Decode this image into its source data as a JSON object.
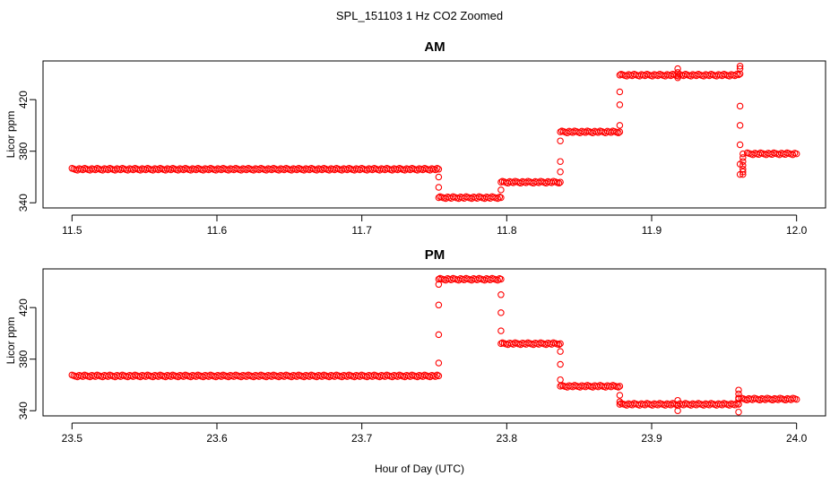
{
  "chart_data": {
    "type": "scatter",
    "title": "SPL_151103  1 Hz CO2 Zoomed",
    "xlabel": "Hour of Day (UTC)",
    "marker_color": "#ff0000",
    "panels": [
      {
        "title": "AM",
        "ylabel": "Licor ppm",
        "xlim": [
          11.48,
          12.02
        ],
        "ylim": [
          336,
          450
        ],
        "xticks": [
          "11.5",
          "11.6",
          "11.7",
          "11.8",
          "11.9",
          "12.0"
        ],
        "yticks": [
          "340",
          "380",
          "420"
        ],
        "segments": [
          {
            "x0": 11.5,
            "x1": 11.752,
            "y": 366
          },
          {
            "x0": 11.754,
            "x1": 11.795,
            "y": 344
          },
          {
            "x0": 11.797,
            "x1": 11.836,
            "y": 356
          },
          {
            "x0": 11.838,
            "x1": 11.877,
            "y": 395
          },
          {
            "x0": 11.879,
            "x1": 11.96,
            "y": 439
          },
          {
            "x0": 11.966,
            "x1": 12.0,
            "y": 378
          }
        ],
        "transitions": [
          {
            "x": 11.753,
            "y": [
              366,
              360,
              352,
              344
            ]
          },
          {
            "x": 11.796,
            "y": [
              344,
              350,
              356
            ]
          },
          {
            "x": 11.837,
            "y": [
              356,
              364,
              372,
              388,
              395
            ]
          },
          {
            "x": 11.878,
            "y": [
              395,
              400,
              416,
              426,
              439
            ]
          },
          {
            "x": 11.918,
            "y": [
              437,
              441,
              444
            ]
          },
          {
            "x": 11.961,
            "y": [
              444,
              446,
              440,
              415,
              400,
              385,
              370,
              362
            ]
          },
          {
            "x": 11.963,
            "y": [
              362,
              364,
              366,
              369,
              372,
              375,
              378
            ]
          }
        ]
      },
      {
        "title": "PM",
        "ylabel": "Licor ppm",
        "xlim": [
          23.48,
          24.02
        ],
        "ylim": [
          336,
          450
        ],
        "xticks": [
          "23.5",
          "23.6",
          "23.7",
          "23.8",
          "23.9",
          "24.0"
        ],
        "yticks": [
          "340",
          "380",
          "420"
        ],
        "segments": [
          {
            "x0": 23.5,
            "x1": 23.752,
            "y": 367
          },
          {
            "x0": 23.754,
            "x1": 23.795,
            "y": 442
          },
          {
            "x0": 23.797,
            "x1": 23.836,
            "y": 392
          },
          {
            "x0": 23.838,
            "x1": 23.877,
            "y": 359
          },
          {
            "x0": 23.879,
            "x1": 23.96,
            "y": 345
          },
          {
            "x0": 23.962,
            "x1": 24.0,
            "y": 349
          }
        ],
        "transitions": [
          {
            "x": 23.753,
            "y": [
              367,
              377,
              399,
              422,
              438,
              442
            ]
          },
          {
            "x": 23.796,
            "y": [
              442,
              430,
              416,
              402,
              392
            ]
          },
          {
            "x": 23.837,
            "y": [
              392,
              386,
              376,
              364,
              359
            ]
          },
          {
            "x": 23.878,
            "y": [
              359,
              352,
              347,
              345
            ]
          },
          {
            "x": 23.918,
            "y": [
              344,
              340,
              348
            ]
          },
          {
            "x": 23.96,
            "y": [
              345,
              339,
              350,
              356,
              353,
              349
            ]
          }
        ]
      }
    ]
  }
}
